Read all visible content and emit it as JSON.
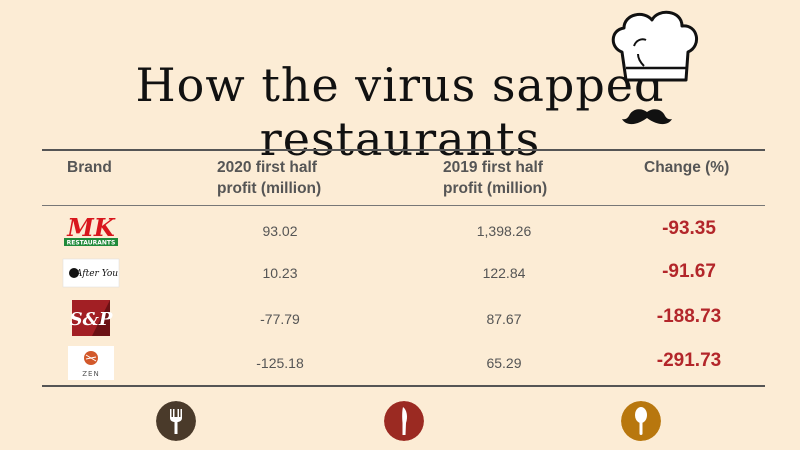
{
  "title": "How the virus sapped restaurants",
  "chart_data": {
    "type": "table",
    "columns": [
      "Brand",
      "2020 first half profit (million)",
      "2019 first half profit (million)",
      "Change (%)"
    ],
    "rows": [
      {
        "brand": "MK",
        "logo_text": "MK",
        "logo_sub": "RESTAURANTS",
        "profit_2020": "93.02",
        "profit_2019": "1,398.26",
        "change": "-93.35"
      },
      {
        "brand": "After You",
        "logo_text": "After You",
        "profit_2020": "10.23",
        "profit_2019": "122.84",
        "change": "-91.67"
      },
      {
        "brand": "S&P",
        "logo_text": "S&P",
        "profit_2020": "-77.79",
        "profit_2019": "87.67",
        "change": "-188.73"
      },
      {
        "brand": "ZEN",
        "logo_text": "ZEN",
        "profit_2020": "-125.18",
        "profit_2019": "65.29",
        "change": "-291.73"
      }
    ]
  },
  "headers": {
    "brand": "Brand",
    "y2020_line1": "2020 first half",
    "y2020_line2": "profit (million)",
    "y2019_line1": "2019 first half",
    "y2019_line2": "profit (million)",
    "change": "Change (%)"
  },
  "icons": [
    "chef-hat-icon",
    "mustache-icon",
    "fork-icon",
    "knife-icon",
    "spoon-icon"
  ],
  "colors": {
    "background": "#fcecd5",
    "change_red": "#b3262a",
    "fork_circle": "#4a3a2a",
    "knife_circle": "#9b2a22",
    "spoon_circle": "#b8770e"
  }
}
